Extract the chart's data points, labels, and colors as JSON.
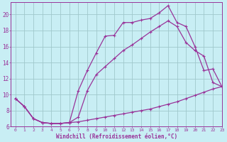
{
  "xlabel": "Windchill (Refroidissement éolien,°C)",
  "bg_color": "#c8eef4",
  "grid_color": "#a0c8cc",
  "line_color": "#993399",
  "xlim": [
    -0.5,
    23
  ],
  "ylim": [
    6,
    21.5
  ],
  "xticks": [
    0,
    1,
    2,
    3,
    4,
    5,
    6,
    7,
    8,
    9,
    10,
    11,
    12,
    13,
    14,
    15,
    16,
    17,
    18,
    19,
    20,
    21,
    22,
    23
  ],
  "yticks": [
    6,
    8,
    10,
    12,
    14,
    16,
    18,
    20
  ],
  "line1_x": [
    0,
    1,
    2,
    3,
    4,
    5,
    6,
    7,
    8,
    9,
    10,
    11,
    12,
    13,
    14,
    15,
    16,
    17,
    18,
    19,
    20,
    21,
    22,
    23
  ],
  "line1_y": [
    9.5,
    8.5,
    7.0,
    6.5,
    6.4,
    6.4,
    6.5,
    6.6,
    6.8,
    7.0,
    7.2,
    7.4,
    7.6,
    7.8,
    8.0,
    8.2,
    8.5,
    8.8,
    9.1,
    9.5,
    9.9,
    10.3,
    10.7,
    11.0
  ],
  "line2_x": [
    0,
    1,
    2,
    3,
    4,
    5,
    6,
    7,
    8,
    9,
    10,
    11,
    12,
    13,
    14,
    15,
    16,
    17,
    18,
    19,
    20,
    21,
    22,
    23
  ],
  "line2_y": [
    9.5,
    8.5,
    7.0,
    6.5,
    6.4,
    6.4,
    6.5,
    10.5,
    13.0,
    15.2,
    17.3,
    17.4,
    19.0,
    19.0,
    19.3,
    19.5,
    20.2,
    21.1,
    19.0,
    18.5,
    16.0,
    13.0,
    13.2,
    11.0
  ],
  "line3_x": [
    0,
    1,
    2,
    3,
    4,
    5,
    6,
    7,
    8,
    9,
    10,
    11,
    12,
    13,
    14,
    15,
    16,
    17,
    18,
    19,
    20,
    21,
    22,
    23
  ],
  "line3_y": [
    9.5,
    8.5,
    7.0,
    6.5,
    6.4,
    6.4,
    6.5,
    7.2,
    10.5,
    12.5,
    13.5,
    14.5,
    15.5,
    16.2,
    17.0,
    17.8,
    18.5,
    19.2,
    18.5,
    16.5,
    15.5,
    14.8,
    11.5,
    11.0
  ]
}
